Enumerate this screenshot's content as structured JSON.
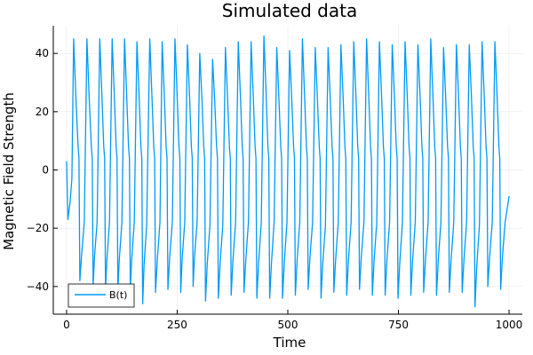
{
  "chart_data": {
    "type": "line",
    "title": "Simulated data",
    "xlabel": "Time",
    "ylabel": "Magnetic Field Strength",
    "xlim": [
      -30,
      1030
    ],
    "ylim": [
      -49.5,
      49.5
    ],
    "xticks": [
      0,
      250,
      500,
      750,
      1000
    ],
    "yticks": [
      -40,
      -20,
      0,
      20,
      40
    ],
    "xtick_labels": [
      "0",
      "250",
      "500",
      "750",
      "1000"
    ],
    "ytick_labels": [
      "−40",
      "−20",
      "0",
      "20",
      "40"
    ],
    "grid": true,
    "legend_position": "bottom-left",
    "series": [
      {
        "name": "B(t)",
        "color": "#009af9",
        "points": [
          [
            0,
            3
          ],
          [
            3,
            -17
          ],
          [
            8,
            -11
          ],
          [
            12,
            -3
          ],
          [
            16,
            45
          ],
          [
            21,
            25
          ],
          [
            26,
            8
          ],
          [
            28,
            4
          ],
          [
            30,
            -38
          ],
          [
            34,
            -29
          ],
          [
            40,
            -18
          ],
          [
            46,
            45
          ],
          [
            51,
            25
          ],
          [
            56,
            8
          ],
          [
            58,
            4
          ],
          [
            60,
            -40
          ],
          [
            63,
            -30
          ],
          [
            69,
            -18
          ],
          [
            75,
            45
          ],
          [
            80,
            25
          ],
          [
            84,
            8
          ],
          [
            86,
            4
          ],
          [
            88,
            -41
          ],
          [
            91,
            -31
          ],
          [
            97,
            -18
          ],
          [
            103,
            45
          ],
          [
            108,
            25
          ],
          [
            112,
            8
          ],
          [
            114,
            4
          ],
          [
            116,
            -41
          ],
          [
            119,
            -31
          ],
          [
            125,
            -18
          ],
          [
            131,
            45
          ],
          [
            136,
            25
          ],
          [
            140,
            8
          ],
          [
            142,
            4
          ],
          [
            144,
            -41
          ],
          [
            147,
            -31
          ],
          [
            153,
            -18
          ],
          [
            159,
            44
          ],
          [
            164,
            25
          ],
          [
            168,
            8
          ],
          [
            170,
            4
          ],
          [
            172,
            -46
          ],
          [
            175,
            -33
          ],
          [
            181,
            -19
          ],
          [
            188,
            45
          ],
          [
            193,
            25
          ],
          [
            197,
            8
          ],
          [
            199,
            4
          ],
          [
            201,
            -42
          ],
          [
            205,
            -31
          ],
          [
            211,
            -18
          ],
          [
            216,
            44
          ],
          [
            221,
            25
          ],
          [
            225,
            8
          ],
          [
            227,
            4
          ],
          [
            229,
            -41
          ],
          [
            233,
            -30
          ],
          [
            239,
            -18
          ],
          [
            245,
            45
          ],
          [
            250,
            25
          ],
          [
            254,
            8
          ],
          [
            256,
            4
          ],
          [
            258,
            -42
          ],
          [
            261,
            -31
          ],
          [
            267,
            -18
          ],
          [
            273,
            43
          ],
          [
            278,
            25
          ],
          [
            282,
            8
          ],
          [
            284,
            4
          ],
          [
            286,
            -40
          ],
          [
            289,
            -30
          ],
          [
            295,
            -18
          ],
          [
            301,
            40
          ],
          [
            306,
            24
          ],
          [
            310,
            8
          ],
          [
            312,
            4
          ],
          [
            314,
            -45
          ],
          [
            318,
            -32
          ],
          [
            324,
            -19
          ],
          [
            330,
            38
          ],
          [
            335,
            23
          ],
          [
            339,
            8
          ],
          [
            341,
            4
          ],
          [
            343,
            -44
          ],
          [
            347,
            -32
          ],
          [
            353,
            -19
          ],
          [
            359,
            42
          ],
          [
            364,
            24
          ],
          [
            368,
            8
          ],
          [
            370,
            4
          ],
          [
            372,
            -43
          ],
          [
            376,
            -31
          ],
          [
            382,
            -18
          ],
          [
            388,
            44
          ],
          [
            393,
            25
          ],
          [
            397,
            8
          ],
          [
            399,
            4
          ],
          [
            401,
            -42
          ],
          [
            405,
            -31
          ],
          [
            411,
            -18
          ],
          [
            417,
            44
          ],
          [
            422,
            25
          ],
          [
            426,
            8
          ],
          [
            428,
            4
          ],
          [
            430,
            -44
          ],
          [
            434,
            -32
          ],
          [
            440,
            -18
          ],
          [
            446,
            46
          ],
          [
            451,
            26
          ],
          [
            455,
            8
          ],
          [
            457,
            4
          ],
          [
            459,
            -44
          ],
          [
            463,
            -32
          ],
          [
            469,
            -18
          ],
          [
            475,
            42
          ],
          [
            480,
            24
          ],
          [
            484,
            8
          ],
          [
            486,
            4
          ],
          [
            488,
            -44
          ],
          [
            492,
            -32
          ],
          [
            498,
            -18
          ],
          [
            504,
            41
          ],
          [
            509,
            24
          ],
          [
            513,
            8
          ],
          [
            515,
            4
          ],
          [
            517,
            -43
          ],
          [
            521,
            -31
          ],
          [
            527,
            -18
          ],
          [
            533,
            45
          ],
          [
            538,
            25
          ],
          [
            542,
            8
          ],
          [
            544,
            4
          ],
          [
            546,
            -41
          ],
          [
            550,
            -30
          ],
          [
            556,
            -18
          ],
          [
            562,
            42
          ],
          [
            567,
            24
          ],
          [
            571,
            8
          ],
          [
            573,
            4
          ],
          [
            575,
            -44
          ],
          [
            579,
            -32
          ],
          [
            585,
            -19
          ],
          [
            591,
            42
          ],
          [
            596,
            24
          ],
          [
            600,
            8
          ],
          [
            602,
            4
          ],
          [
            604,
            -42
          ],
          [
            608,
            -31
          ],
          [
            614,
            -18
          ],
          [
            620,
            43
          ],
          [
            625,
            25
          ],
          [
            629,
            8
          ],
          [
            631,
            4
          ],
          [
            633,
            -43
          ],
          [
            637,
            -31
          ],
          [
            643,
            -18
          ],
          [
            649,
            44
          ],
          [
            654,
            25
          ],
          [
            658,
            8
          ],
          [
            660,
            4
          ],
          [
            662,
            -41
          ],
          [
            666,
            -30
          ],
          [
            672,
            -18
          ],
          [
            678,
            45
          ],
          [
            683,
            25
          ],
          [
            687,
            8
          ],
          [
            689,
            4
          ],
          [
            691,
            -43
          ],
          [
            695,
            -31
          ],
          [
            701,
            -18
          ],
          [
            707,
            44
          ],
          [
            712,
            25
          ],
          [
            716,
            8
          ],
          [
            718,
            4
          ],
          [
            720,
            -43
          ],
          [
            724,
            -31
          ],
          [
            730,
            -18
          ],
          [
            736,
            43
          ],
          [
            741,
            25
          ],
          [
            745,
            8
          ],
          [
            747,
            4
          ],
          [
            749,
            -44
          ],
          [
            753,
            -32
          ],
          [
            759,
            -18
          ],
          [
            765,
            44
          ],
          [
            770,
            25
          ],
          [
            774,
            8
          ],
          [
            776,
            4
          ],
          [
            778,
            -43
          ],
          [
            782,
            -31
          ],
          [
            788,
            -18
          ],
          [
            794,
            43
          ],
          [
            799,
            25
          ],
          [
            803,
            8
          ],
          [
            805,
            4
          ],
          [
            807,
            -42
          ],
          [
            811,
            -31
          ],
          [
            817,
            -18
          ],
          [
            823,
            45
          ],
          [
            828,
            25
          ],
          [
            832,
            8
          ],
          [
            834,
            4
          ],
          [
            836,
            -43
          ],
          [
            840,
            -31
          ],
          [
            846,
            -18
          ],
          [
            852,
            42
          ],
          [
            857,
            24
          ],
          [
            861,
            8
          ],
          [
            863,
            4
          ],
          [
            865,
            -42
          ],
          [
            869,
            -31
          ],
          [
            875,
            -18
          ],
          [
            881,
            43
          ],
          [
            886,
            25
          ],
          [
            890,
            8
          ],
          [
            892,
            4
          ],
          [
            894,
            -42
          ],
          [
            898,
            -31
          ],
          [
            904,
            -18
          ],
          [
            910,
            43
          ],
          [
            915,
            25
          ],
          [
            919,
            8
          ],
          [
            921,
            4
          ],
          [
            923,
            -47
          ],
          [
            927,
            -33
          ],
          [
            933,
            -19
          ],
          [
            939,
            44
          ],
          [
            944,
            25
          ],
          [
            948,
            8
          ],
          [
            950,
            4
          ],
          [
            952,
            -40
          ],
          [
            956,
            -30
          ],
          [
            962,
            -18
          ],
          [
            968,
            44
          ],
          [
            973,
            25
          ],
          [
            977,
            8
          ],
          [
            979,
            4
          ],
          [
            981,
            -41
          ],
          [
            985,
            -30
          ],
          [
            991,
            -18
          ],
          [
            995,
            -14
          ],
          [
            1000,
            -9
          ]
        ]
      }
    ]
  }
}
